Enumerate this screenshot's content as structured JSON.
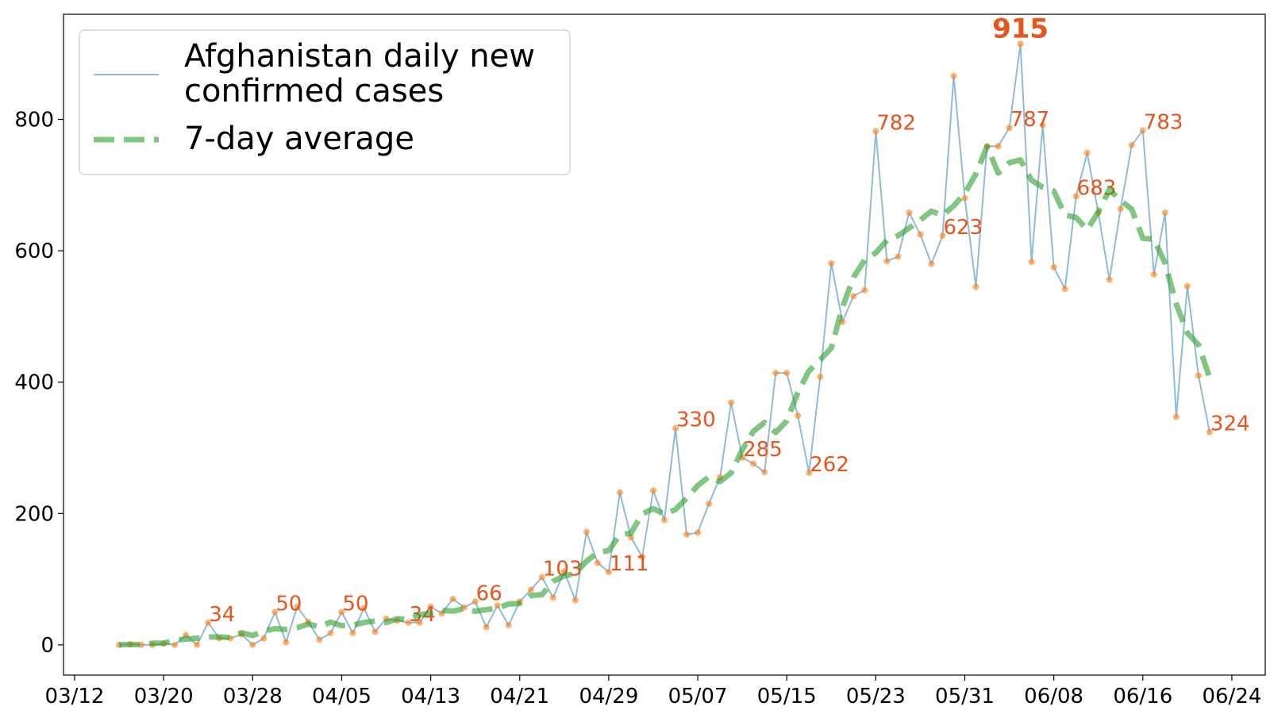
{
  "chart_data": {
    "type": "line",
    "x": [
      "03/16",
      "03/17",
      "03/18",
      "03/19",
      "03/20",
      "03/21",
      "03/22",
      "03/23",
      "03/24",
      "03/25",
      "03/26",
      "03/27",
      "03/28",
      "03/29",
      "03/30",
      "03/31",
      "04/01",
      "04/02",
      "04/03",
      "04/04",
      "04/05",
      "04/06",
      "04/07",
      "04/08",
      "04/09",
      "04/10",
      "04/11",
      "04/12",
      "04/13",
      "04/14",
      "04/15",
      "04/16",
      "04/17",
      "04/18",
      "04/19",
      "04/20",
      "04/21",
      "04/22",
      "04/23",
      "04/24",
      "04/25",
      "04/26",
      "04/27",
      "04/28",
      "04/29",
      "04/30",
      "05/01",
      "05/02",
      "05/03",
      "05/04",
      "05/05",
      "05/06",
      "05/07",
      "05/08",
      "05/09",
      "05/10",
      "05/11",
      "05/12",
      "05/13",
      "05/14",
      "05/15",
      "05/16",
      "05/17",
      "05/18",
      "05/19",
      "05/20",
      "05/21",
      "05/22",
      "05/23",
      "05/24",
      "05/25",
      "05/26",
      "05/27",
      "05/28",
      "05/29",
      "05/30",
      "05/31",
      "06/01",
      "06/02",
      "06/03",
      "06/04",
      "06/05",
      "06/06",
      "06/07",
      "06/08",
      "06/09",
      "06/10",
      "06/11",
      "06/12",
      "06/13",
      "06/14",
      "06/15",
      "06/16",
      "06/17",
      "06/18",
      "06/19",
      "06/20",
      "06/21",
      "06/22"
    ],
    "series": [
      {
        "name": "Afghanistan daily new\nconfirmed cases",
        "color": "#1f77b4",
        "marker_color": "#ff7f0e",
        "values": [
          0,
          1,
          0,
          0,
          2,
          0,
          15,
          0,
          34,
          10,
          10,
          16,
          0,
          10,
          50,
          4,
          58,
          35,
          8,
          18,
          50,
          18,
          56,
          20,
          40,
          37,
          34,
          34,
          58,
          48,
          70,
          57,
          66,
          27,
          60,
          30,
          66,
          84,
          103,
          72,
          112,
          68,
          172,
          125,
          111,
          232,
          164,
          134,
          235,
          190,
          330,
          168,
          171,
          215,
          255,
          369,
          285,
          276,
          263,
          414,
          414,
          349,
          262,
          408,
          581,
          492,
          531,
          540,
          782,
          584,
          591,
          658,
          625,
          580,
          623,
          866,
          680,
          545,
          759,
          759,
          787,
          915,
          583,
          791,
          575,
          542,
          683,
          749,
          658,
          556,
          664,
          761,
          783,
          564,
          658,
          347,
          546,
          410,
          324
        ],
        "value_labels": [
          null,
          null,
          null,
          null,
          null,
          null,
          null,
          null,
          "34",
          null,
          null,
          null,
          null,
          null,
          "50",
          null,
          null,
          null,
          null,
          null,
          "50",
          null,
          null,
          null,
          null,
          null,
          "34",
          null,
          null,
          null,
          null,
          null,
          "66",
          null,
          null,
          null,
          null,
          null,
          "103",
          null,
          null,
          null,
          null,
          null,
          "111",
          null,
          null,
          null,
          null,
          null,
          "330",
          null,
          null,
          null,
          null,
          null,
          "285",
          null,
          null,
          null,
          null,
          null,
          "262",
          null,
          null,
          null,
          null,
          null,
          "782",
          null,
          null,
          null,
          null,
          null,
          "623",
          null,
          null,
          null,
          null,
          null,
          "787",
          "915",
          null,
          null,
          null,
          null,
          "683",
          null,
          null,
          null,
          null,
          null,
          "783",
          null,
          null,
          null,
          null,
          null,
          "324"
        ]
      },
      {
        "name": "7-day average",
        "color": "#2ca02c",
        "style": "dashed",
        "values": [
          0.3,
          0.6,
          0.5,
          2.6,
          2.6,
          7.3,
          8.7,
          10.1,
          12.1,
          12.1,
          11.4,
          18.6,
          14.3,
          21.1,
          24.7,
          23.6,
          26.1,
          31.9,
          27.3,
          34.7,
          29.3,
          30,
          34.1,
          36.4,
          34.1,
          39.9,
          38.7,
          45.9,
          48.3,
          52.4,
          51.4,
          55.1,
          51.1,
          53.7,
          55.7,
          62.3,
          63.1,
          75.3,
          76.4,
          96.7,
          105.1,
          109,
          127.4,
          140.6,
          143.7,
          167.6,
          170.1,
          199.4,
          207.6,
          198.9,
          206.1,
          223.4,
          242.6,
          256.1,
          248.4,
          262,
          296.7,
          325.1,
          338.6,
          323.3,
          340.9,
          384.4,
          417.1,
          433.9,
          451.9,
          513.7,
          559.7,
          585.9,
          596.9,
          615.9,
          622.9,
          634.7,
          646.7,
          660.4,
          653.9,
          668.3,
          687.4,
          717,
          758.7,
          718.3,
          734.1,
          738.4,
          707.4,
          696.6,
          691.1,
          654.4,
          650.6,
          632.4,
          659,
          693.4,
          676.4,
          663.4,
          619,
          617.6,
          581.3,
          518.9,
          474.8,
          457,
          406.8
        ]
      }
    ],
    "xlim": [
      "03/11",
      "06/27"
    ],
    "xticks": [
      "03/12",
      "03/20",
      "03/28",
      "04/05",
      "04/13",
      "04/21",
      "04/29",
      "05/07",
      "05/15",
      "05/23",
      "05/31",
      "06/08",
      "06/16",
      "06/24"
    ],
    "ylim": [
      -46,
      960
    ],
    "yticks": [
      0,
      200,
      400,
      600,
      800
    ],
    "grid": false,
    "legend": "upper left"
  }
}
